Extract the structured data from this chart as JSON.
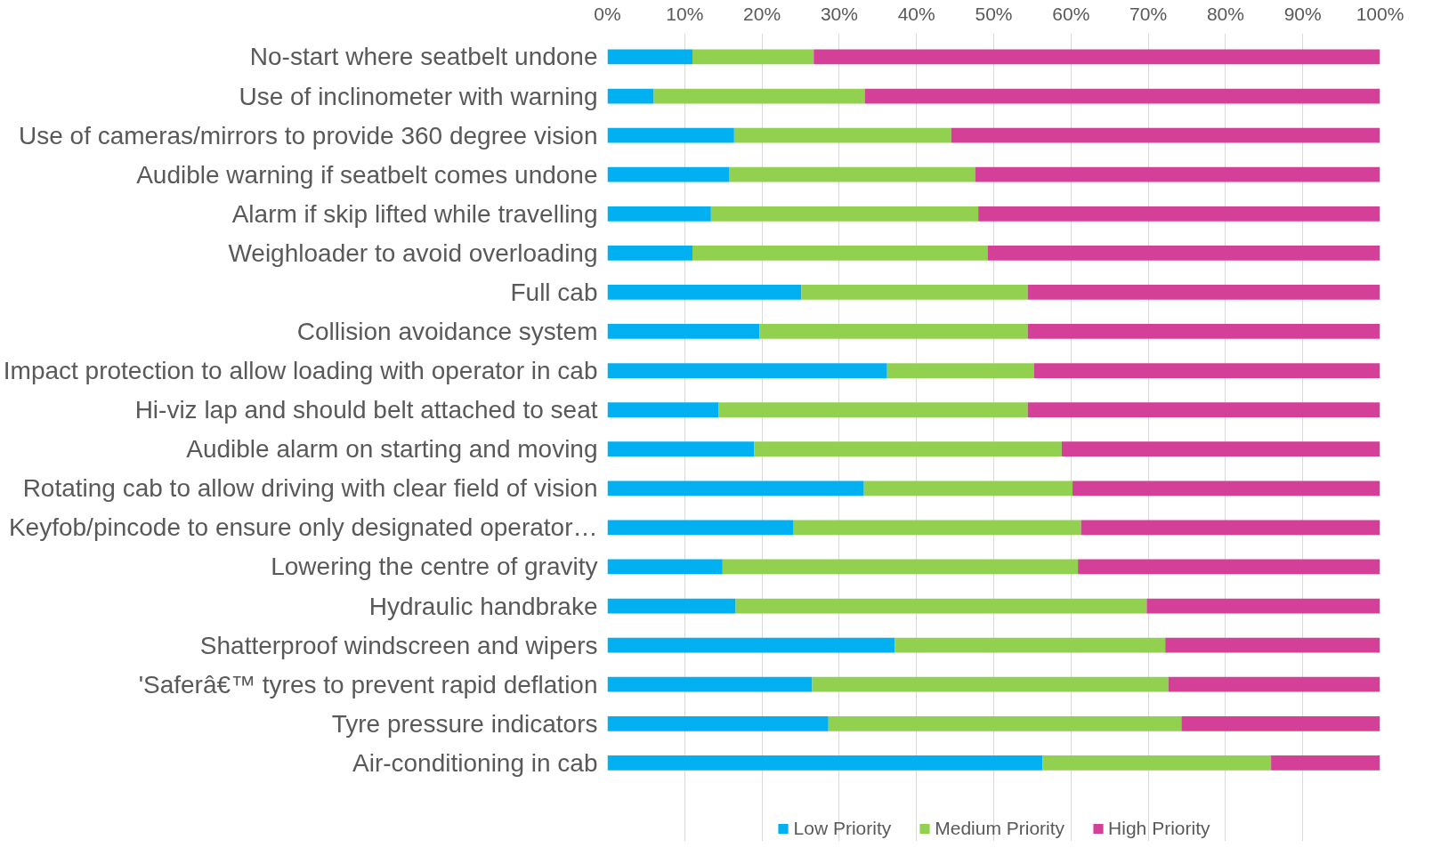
{
  "chart_data": {
    "type": "bar",
    "orientation": "horizontal",
    "stacked": true,
    "categories": [
      "No-start where seatbelt undone",
      "Use of inclinometer with warning",
      "Use of cameras/mirrors to provide 360 degree vision",
      "Audible warning if seatbelt comes undone",
      "Alarm if skip lifted while travelling",
      "Weighloader to avoid overloading",
      "Full cab",
      "Collision avoidance system",
      "Impact protection to allow loading with operator in cab",
      "Hi-viz lap and should belt attached to seat",
      "Audible alarm on starting and moving",
      "Rotating cab to allow driving with clear field of vision",
      "Keyfob/pincode to ensure only designated operator…",
      "Lowering the centre of gravity",
      "Hydraulic handbrake",
      "Shatterproof windscreen and wipers",
      "'Saferâ€™ tyres to prevent rapid deflation",
      "Tyre pressure indicators",
      "Air-conditioning in cab"
    ],
    "series": [
      {
        "name": "Low Priority",
        "color": "#00b0f0",
        "values": [
          11,
          6,
          16.4,
          15.8,
          13.4,
          11,
          25.1,
          19.7,
          36.2,
          14.4,
          19,
          33.2,
          24.1,
          14.9,
          16.6,
          37.2,
          26.5,
          28.6,
          56.3
        ]
      },
      {
        "name": "Medium Priority",
        "color": "#92d050",
        "values": [
          15.7,
          27.3,
          28.1,
          31.8,
          34.6,
          38.2,
          29.3,
          34.7,
          19,
          40,
          39.8,
          27,
          37.2,
          46,
          53.2,
          35,
          46.1,
          45.7,
          29.6
        ]
      },
      {
        "name": "High Priority",
        "color": "#d43f98",
        "values": [
          73.3,
          66.7,
          55.5,
          52.4,
          52,
          50.8,
          45.6,
          45.6,
          44.8,
          45.6,
          41.2,
          39.8,
          38.7,
          39.1,
          30.2,
          27.8,
          27.4,
          25.7,
          14.1
        ]
      }
    ],
    "xlim": [
      0,
      100
    ],
    "xticks": [
      {
        "value": 0,
        "label": "0%"
      },
      {
        "value": 10,
        "label": "10%"
      },
      {
        "value": 20,
        "label": "20%"
      },
      {
        "value": 30,
        "label": "30%"
      },
      {
        "value": 40,
        "label": "40%"
      },
      {
        "value": 50,
        "label": "50%"
      },
      {
        "value": 60,
        "label": "60%"
      },
      {
        "value": 70,
        "label": "70%"
      },
      {
        "value": 80,
        "label": "80%"
      },
      {
        "value": 90,
        "label": "90%"
      },
      {
        "value": 100,
        "label": "100%"
      }
    ],
    "grid": "x",
    "legend": "bottom"
  }
}
